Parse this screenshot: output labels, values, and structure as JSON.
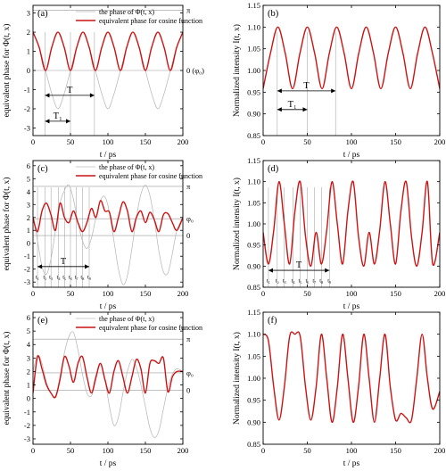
{
  "colors": {
    "primary": "#cc1414",
    "secondary": "#bcbcbc",
    "axis": "#000000",
    "guide": "#9a9a9a"
  },
  "chart_data": [
    {
      "id": "a",
      "type": "line",
      "panel_label": "(a)",
      "xlabel": "t / ps",
      "ylabel": "equivalent phase for Φ(t, x)",
      "xlim": [
        0,
        200
      ],
      "ylim": [
        -3.4,
        3.4
      ],
      "xticks": [
        0,
        50,
        100,
        150,
        200
      ],
      "xtick_labels": [
        "0",
        "50",
        "100",
        "150",
        "200"
      ],
      "yticks": [
        -3,
        -2,
        -1,
        0,
        1,
        2,
        3
      ],
      "ytick_labels": [
        "-3",
        "-2",
        "-1",
        "0",
        "1",
        "2",
        "3"
      ],
      "hlines": [
        {
          "y": 3.14,
          "label": "π"
        },
        {
          "y": 0,
          "label": "0 (φ₀)"
        }
      ],
      "vlines": [
        16,
        50,
        82
      ],
      "arrows": [
        {
          "label": "T",
          "x0": 16,
          "x1": 82,
          "y": -1.3
        },
        {
          "label": "T₁",
          "x0": 16,
          "x1": 50,
          "y": -2.65
        }
      ],
      "series": [
        {
          "name": "the phase of Φ(t, x)",
          "kind": "phase",
          "x": [
            0,
            8.3,
            16.7,
            25,
            33.3,
            41.7,
            50,
            58.3,
            66.7,
            75,
            83.3,
            91.7,
            100,
            108.3,
            116.7,
            125,
            133.3,
            141.7,
            150,
            158.3,
            166.7,
            175,
            183.3,
            191.7,
            200
          ],
          "y": [
            2,
            1.2,
            0,
            -1.2,
            -2,
            -1.2,
            0,
            1.2,
            2,
            1.2,
            0,
            -1.2,
            -2,
            -1.2,
            0,
            1.2,
            2,
            1.2,
            0,
            -1.2,
            -2,
            -1.2,
            0,
            1.2,
            2
          ]
        },
        {
          "name": "equivalent phase for cosine function",
          "kind": "equiv",
          "x": [
            0,
            8.3,
            16.7,
            25,
            33.3,
            41.7,
            50,
            58.3,
            66.7,
            75,
            83.3,
            91.7,
            100,
            108.3,
            116.7,
            125,
            133.3,
            141.7,
            150,
            158.3,
            166.7,
            175,
            183.3,
            191.7,
            200
          ],
          "y": [
            2,
            1.2,
            0,
            1.2,
            2,
            1.2,
            0,
            1.2,
            2,
            1.2,
            0,
            1.2,
            2,
            1.2,
            0,
            1.2,
            2,
            1.2,
            0,
            1.2,
            2,
            1.2,
            0,
            1.2,
            2
          ]
        }
      ]
    },
    {
      "id": "b",
      "type": "line",
      "panel_label": "(b)",
      "xlabel": "t / ps",
      "ylabel": "Normalized intensity I(t, x)",
      "xlim": [
        0,
        200
      ],
      "ylim": [
        0.85,
        1.15
      ],
      "xticks": [
        0,
        50,
        100,
        150,
        200
      ],
      "xtick_labels": [
        "0",
        "50",
        "100",
        "150",
        "200"
      ],
      "yticks": [
        0.85,
        0.9,
        0.95,
        1.0,
        1.05,
        1.1,
        1.15
      ],
      "ytick_labels": [
        "0.85",
        "0.90",
        "0.95",
        "1.00",
        "1.05",
        "1.10",
        "1.15"
      ],
      "vlines": [
        16,
        50,
        82
      ],
      "arrows": [
        {
          "label": "T",
          "x0": 16,
          "x1": 82,
          "y": 0.953
        },
        {
          "label": "T₁",
          "x0": 16,
          "x1": 50,
          "y": 0.91
        }
      ],
      "series": [
        {
          "name": "",
          "kind": "intensity",
          "x": [
            0,
            8.3,
            16.7,
            25,
            33.3,
            41.7,
            50,
            58.3,
            66.7,
            75,
            83.3,
            91.7,
            100,
            108.3,
            116.7,
            125,
            133.3,
            141.7,
            150,
            158.3,
            166.7,
            175,
            183.3,
            191.7,
            200
          ],
          "y": [
            0.958,
            1.04,
            1.1,
            1.04,
            0.958,
            1.04,
            1.1,
            1.04,
            0.958,
            1.04,
            1.1,
            1.04,
            0.958,
            1.04,
            1.1,
            1.04,
            0.958,
            1.04,
            1.1,
            1.04,
            0.958,
            1.04,
            1.1,
            1.04,
            0.958
          ]
        }
      ]
    },
    {
      "id": "c",
      "type": "line",
      "panel_label": "(c)",
      "xlabel": "t / ps",
      "ylabel": "equivalent phase for Φ(t, x)",
      "xlim": [
        0,
        200
      ],
      "ylim": [
        -3.4,
        6.4
      ],
      "xticks": [
        0,
        50,
        100,
        150,
        200
      ],
      "xtick_labels": [
        "0",
        "50",
        "100",
        "150",
        "200"
      ],
      "yticks": [
        -3,
        -2,
        -1,
        0,
        1,
        2,
        3,
        4,
        5,
        6
      ],
      "ytick_labels": [
        "-3",
        "-2",
        "-1",
        "0",
        "1",
        "2",
        "3",
        "4",
        "5",
        "6"
      ],
      "hlines": [
        {
          "y": 4.4,
          "label": "π"
        },
        {
          "y": 1.9,
          "label": "φ₀"
        },
        {
          "y": 0.6,
          "label": "0"
        }
      ],
      "vlines": [
        6,
        16,
        24,
        34,
        42,
        50,
        58,
        66,
        75
      ],
      "arrows": [
        {
          "label": "T",
          "x0": 6,
          "x1": 75,
          "y": -1.8
        }
      ],
      "t_labels": {
        "y": -2.75,
        "labels": [
          "t₁",
          "t₂",
          "t₃",
          "t₄",
          "t₅",
          "t₆",
          "t₇",
          "t₈",
          "t₉"
        ],
        "x": [
          6,
          16,
          24,
          34,
          42,
          50,
          58,
          66,
          75
        ]
      },
      "series": [
        {
          "name": "the phase of Φ(t, x)",
          "kind": "phase",
          "x": [
            0,
            6,
            12,
            18,
            24,
            30,
            36,
            42,
            48,
            54,
            60,
            66,
            72,
            78,
            84,
            90,
            96,
            102,
            108,
            114,
            120,
            126,
            132,
            138,
            144,
            150,
            156,
            162,
            168,
            174,
            180,
            186,
            192,
            200
          ],
          "y": [
            2,
            0.2,
            -1.8,
            -2.4,
            -1.2,
            1.0,
            3.1,
            4.1,
            4.5,
            3.4,
            1.6,
            0.2,
            -0.4,
            0.4,
            2.0,
            3.3,
            3.6,
            2.4,
            0.2,
            -2.0,
            -3.2,
            -2.5,
            -0.4,
            2.0,
            3.8,
            4.5,
            3.7,
            1.8,
            -0.6,
            -2.2,
            -2.3,
            -0.8,
            1.0,
            2.0
          ]
        },
        {
          "name": "equivalent phase for cosine function",
          "kind": "equiv",
          "x": [
            0,
            6,
            12,
            18,
            24,
            30,
            36,
            42,
            48,
            54,
            60,
            66,
            72,
            78,
            84,
            90,
            96,
            102,
            108,
            114,
            120,
            126,
            132,
            138,
            144,
            150,
            156,
            162,
            168,
            174,
            180,
            186,
            192,
            200
          ],
          "y": [
            2,
            0.9,
            2.5,
            3.1,
            2.2,
            1.0,
            3.1,
            2.0,
            1.6,
            2.5,
            1.6,
            0.9,
            1.6,
            2.7,
            2.0,
            3.3,
            2.5,
            2.4,
            0.9,
            2.0,
            3.2,
            2.5,
            0.9,
            2.0,
            2.5,
            1.6,
            2.4,
            1.8,
            0.9,
            2.2,
            2.3,
            1.6,
            1.0,
            2.0
          ]
        }
      ]
    },
    {
      "id": "d",
      "type": "line",
      "panel_label": "(d)",
      "xlabel": "t / ps",
      "ylabel": "Normalized intensity I(t, x)",
      "xlim": [
        0,
        200
      ],
      "ylim": [
        0.85,
        1.15
      ],
      "xticks": [
        0,
        50,
        100,
        150,
        200
      ],
      "xtick_labels": [
        "0",
        "50",
        "100",
        "150",
        "200"
      ],
      "yticks": [
        0.85,
        0.9,
        0.95,
        1.0,
        1.05,
        1.1,
        1.15
      ],
      "ytick_labels": [
        "0.85",
        "0.90",
        "0.95",
        "1.00",
        "1.05",
        "1.10",
        "1.15"
      ],
      "vlines": [
        6,
        16,
        24,
        34,
        42,
        50,
        58,
        66,
        75
      ],
      "arrows": [
        {
          "label": "T",
          "x0": 6,
          "x1": 75,
          "y": 0.89
        }
      ],
      "t_labels": {
        "y": 0.862,
        "labels": [
          "t₁",
          "t₂",
          "t₃",
          "t₄",
          "t₅",
          "t₆",
          "t₇",
          "t₈",
          "t₉"
        ],
        "x": [
          6,
          16,
          24,
          34,
          42,
          50,
          58,
          66,
          75
        ]
      },
      "series": [
        {
          "name": "",
          "kind": "intensity",
          "x": [
            0,
            6,
            12,
            18,
            24,
            30,
            36,
            42,
            48,
            54,
            60,
            66,
            72,
            78,
            84,
            90,
            96,
            102,
            108,
            114,
            120,
            126,
            132,
            138,
            144,
            150,
            156,
            162,
            168,
            174,
            180,
            186,
            192,
            200
          ],
          "y": [
            0.98,
            0.905,
            0.985,
            1.1,
            1.0,
            0.905,
            1.03,
            1.1,
            0.97,
            0.9,
            0.98,
            0.905,
            0.985,
            1.1,
            1.0,
            0.905,
            1.03,
            1.1,
            0.97,
            0.9,
            0.98,
            0.905,
            0.985,
            1.1,
            1.0,
            0.905,
            1.03,
            1.1,
            0.97,
            0.9,
            0.98,
            1.1,
            0.905,
            0.98
          ]
        }
      ]
    },
    {
      "id": "e",
      "type": "line",
      "panel_label": "(e)",
      "xlabel": "t / ps",
      "ylabel": "equivalent phase for Φ(t, x)",
      "xlim": [
        0,
        200
      ],
      "ylim": [
        -3.4,
        6.4
      ],
      "xticks": [
        0,
        50,
        100,
        150,
        200
      ],
      "xtick_labels": [
        "0",
        "50",
        "100",
        "150",
        "200"
      ],
      "yticks": [
        -3,
        -2,
        -1,
        0,
        1,
        2,
        3,
        4,
        5,
        6
      ],
      "ytick_labels": [
        "-3",
        "-2",
        "-1",
        "0",
        "1",
        "2",
        "3",
        "4",
        "5",
        "6"
      ],
      "hlines": [
        {
          "y": 4.4,
          "label": "π"
        },
        {
          "y": 1.9,
          "label": "φ₀"
        },
        {
          "y": 0.6,
          "label": "0"
        }
      ],
      "vlines": [],
      "arrows": [],
      "series": [
        {
          "name": "the phase of Φ(t, x)",
          "kind": "phase",
          "x": [
            0,
            6,
            12,
            18,
            24,
            30,
            36,
            42,
            48,
            54,
            60,
            66,
            72,
            78,
            84,
            90,
            96,
            102,
            108,
            114,
            120,
            126,
            132,
            138,
            144,
            150,
            156,
            162,
            168,
            174,
            180,
            186,
            192,
            200
          ],
          "y": [
            2,
            3.2,
            2.6,
            1.2,
            0.4,
            0.2,
            1.6,
            3.4,
            4.6,
            4.9,
            3.6,
            1.8,
            0.4,
            0.2,
            1.4,
            2.6,
            1.4,
            -0.6,
            -2.0,
            -1.4,
            0.4,
            2.0,
            2.9,
            2.3,
            1.0,
            -0.6,
            -2.2,
            -2.9,
            -2.4,
            -0.8,
            0.8,
            1.8,
            2.2,
            2.0
          ]
        },
        {
          "name": "equivalent phase for cosine function",
          "kind": "equiv",
          "x": [
            0,
            6,
            12,
            18,
            24,
            30,
            36,
            42,
            48,
            54,
            60,
            66,
            72,
            78,
            84,
            90,
            96,
            102,
            108,
            114,
            120,
            126,
            132,
            138,
            144,
            150,
            156,
            162,
            168,
            174,
            180,
            186,
            192,
            200
          ],
          "y": [
            0.4,
            3.1,
            2.2,
            1.0,
            0.4,
            0.1,
            1.4,
            3.1,
            2.4,
            1.2,
            2.6,
            3.1,
            1.6,
            0.4,
            1.6,
            2.6,
            1.4,
            0.4,
            2.0,
            2.8,
            1.6,
            0.4,
            1.6,
            2.9,
            2.2,
            0.4,
            2.6,
            2.8,
            2.6,
            3.0,
            0.5,
            1.6,
            2.0,
            2.0
          ]
        }
      ]
    },
    {
      "id": "f",
      "type": "line",
      "panel_label": "(f)",
      "xlabel": "t / ps",
      "ylabel": "Normalized intensity I(t, x)",
      "xlim": [
        0,
        200
      ],
      "ylim": [
        0.85,
        1.15
      ],
      "xticks": [
        0,
        50,
        100,
        150,
        200
      ],
      "xtick_labels": [
        "0",
        "50",
        "100",
        "150",
        "200"
      ],
      "yticks": [
        0.85,
        0.9,
        0.95,
        1.0,
        1.05,
        1.1,
        1.15
      ],
      "ytick_labels": [
        "0.85",
        "0.90",
        "0.95",
        "1.00",
        "1.05",
        "1.10",
        "1.15"
      ],
      "vlines": [],
      "arrows": [],
      "series": [
        {
          "name": "",
          "kind": "intensity",
          "x": [
            0,
            6,
            12,
            18,
            24,
            30,
            36,
            42,
            48,
            54,
            60,
            66,
            72,
            78,
            84,
            90,
            96,
            102,
            108,
            114,
            120,
            126,
            132,
            138,
            144,
            150,
            156,
            162,
            168,
            174,
            180,
            186,
            192,
            200
          ],
          "y": [
            1.1,
            1.085,
            0.98,
            0.905,
            0.98,
            1.095,
            1.1,
            1.095,
            0.98,
            0.905,
            0.98,
            1.1,
            1.0,
            0.9,
            0.98,
            1.1,
            1.0,
            0.9,
            0.98,
            1.1,
            1.0,
            0.9,
            1.0,
            1.1,
            0.98,
            0.905,
            0.92,
            0.91,
            0.905,
            1.0,
            1.1,
            1.0,
            0.93,
            0.97
          ]
        }
      ]
    }
  ]
}
